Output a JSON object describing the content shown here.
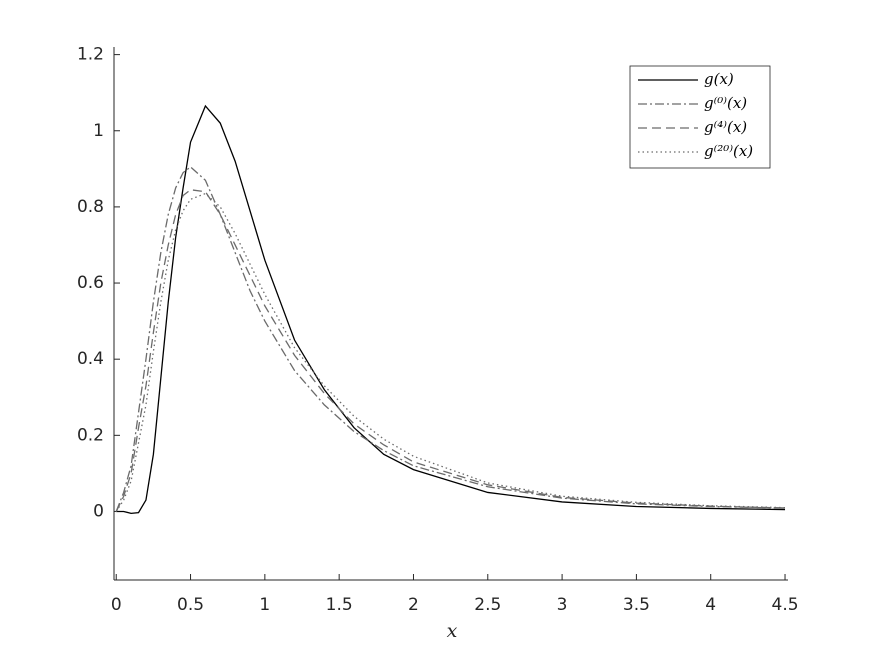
{
  "chart_data": {
    "type": "line",
    "x_label": "x",
    "x": [
      0,
      0.05,
      0.1,
      0.15,
      0.2,
      0.25,
      0.3,
      0.35,
      0.4,
      0.45,
      0.5,
      0.6,
      0.7,
      0.8,
      0.9,
      1.0,
      1.2,
      1.4,
      1.6,
      1.8,
      2.0,
      2.5,
      3.0,
      3.5,
      4.0,
      4.5
    ],
    "series": [
      {
        "name": "g(x)",
        "color": "#000000",
        "linestyle": "solid",
        "values": [
          0,
          0,
          -0.005,
          -0.003,
          0.03,
          0.15,
          0.35,
          0.55,
          0.72,
          0.85,
          0.97,
          1.065,
          1.02,
          0.92,
          0.79,
          0.66,
          0.45,
          0.32,
          0.22,
          0.15,
          0.11,
          0.05,
          0.025,
          0.013,
          0.008,
          0.005
        ]
      },
      {
        "name": "g⁽⁰⁾(x)",
        "color": "#6b6b6b",
        "linestyle": "dashdot",
        "values": [
          0,
          0.05,
          0.12,
          0.26,
          0.4,
          0.55,
          0.68,
          0.78,
          0.85,
          0.89,
          0.905,
          0.87,
          0.78,
          0.68,
          0.58,
          0.5,
          0.37,
          0.28,
          0.21,
          0.16,
          0.12,
          0.065,
          0.035,
          0.02,
          0.013,
          0.009
        ]
      },
      {
        "name": "g⁽⁴⁾(x)",
        "color": "#6b6b6b",
        "linestyle": "dashed",
        "values": [
          0,
          0.04,
          0.1,
          0.22,
          0.33,
          0.47,
          0.6,
          0.7,
          0.78,
          0.83,
          0.845,
          0.84,
          0.78,
          0.7,
          0.62,
          0.54,
          0.41,
          0.31,
          0.23,
          0.175,
          0.13,
          0.07,
          0.037,
          0.022,
          0.014,
          0.009
        ]
      },
      {
        "name": "g⁽²⁰⁾(x)",
        "color": "#6b6b6b",
        "linestyle": "dotted",
        "values": [
          0,
          0.03,
          0.08,
          0.18,
          0.28,
          0.42,
          0.55,
          0.66,
          0.74,
          0.79,
          0.82,
          0.835,
          0.8,
          0.73,
          0.65,
          0.57,
          0.43,
          0.33,
          0.25,
          0.19,
          0.145,
          0.075,
          0.04,
          0.024,
          0.015,
          0.01
        ]
      }
    ],
    "xlim": [
      -0.015,
      4.52
    ],
    "ylim": [
      -0.18,
      1.22
    ],
    "xticks": [
      0,
      0.5,
      1,
      1.5,
      2,
      2.5,
      3,
      3.5,
      4,
      4.5
    ],
    "yticks": [
      0,
      0.2,
      0.4,
      0.6,
      0.8,
      1,
      1.2
    ],
    "grid": false,
    "legend": "upper right"
  }
}
